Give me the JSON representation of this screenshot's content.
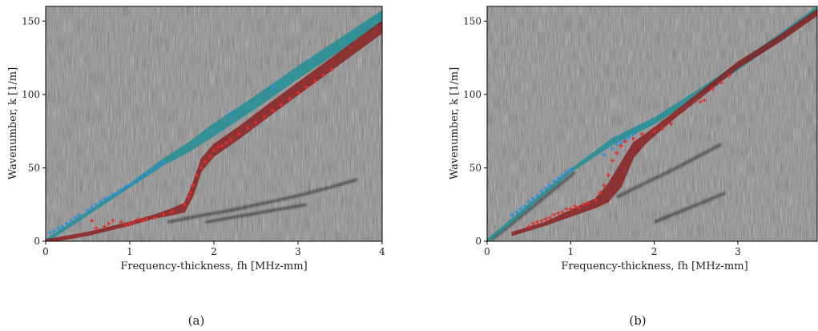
{
  "figure": {
    "captions": [
      "(a)",
      "(b)"
    ]
  },
  "colors": {
    "background_noise": "#8a8a8a",
    "symmetric_band": "#1a8f96",
    "antisymmetric_band": "#8b1a1a",
    "blue_marker": "#2a8fe0",
    "red_marker": "#e03030",
    "dark_ridge": "#1c1c1c"
  },
  "chart_data": [
    {
      "type": "scatter",
      "caption": "(a)",
      "xlabel": "Frequency-thickness, fh [MHz-mm]",
      "ylabel": "Wavenumber, k [1/m]",
      "xlim": [
        0,
        4
      ],
      "ylim": [
        0,
        160
      ],
      "xticks": [
        0,
        1,
        2,
        3,
        4
      ],
      "yticks": [
        0,
        50,
        100,
        150
      ],
      "grid": false,
      "legend": "none",
      "bands": [
        {
          "color": "teal",
          "x": [
            0,
            0.5,
            1.0,
            1.4,
            1.7,
            2.0,
            2.5,
            3.0,
            3.5,
            4.0
          ],
          "y": [
            0,
            19,
            38,
            54,
            64,
            76,
            95,
            115,
            134,
            153
          ],
          "halfwidth": [
            1,
            1,
            1,
            2,
            3,
            4,
            4,
            4,
            4,
            4
          ]
        },
        {
          "color": "maroon",
          "x": [
            0,
            0.5,
            1.0,
            1.3,
            1.5,
            1.65,
            1.75,
            1.85,
            2.0,
            2.3,
            2.6,
            3.0,
            3.5,
            4.0
          ],
          "y": [
            0,
            5,
            12,
            17,
            20,
            23,
            35,
            52,
            62,
            74,
            87,
            104,
            125,
            146
          ],
          "halfwidth": [
            1,
            1,
            1,
            1,
            2,
            3,
            4,
            4,
            4,
            4,
            4,
            4,
            4,
            4
          ]
        }
      ],
      "series": [
        {
          "color": "blue",
          "x": [
            0.05,
            0.1,
            0.15,
            0.2,
            0.25,
            0.3,
            0.35,
            0.4,
            0.5,
            0.55,
            0.6,
            0.65,
            0.7,
            0.75,
            0.8,
            0.85,
            0.9,
            0.95,
            1.0,
            1.05,
            1.1,
            1.15,
            1.2,
            1.25,
            1.3,
            1.35,
            1.4,
            2.2,
            2.7
          ],
          "y": [
            6,
            7,
            9,
            10,
            12,
            14,
            16,
            18,
            21,
            23,
            25,
            27,
            29,
            30,
            32,
            33,
            35,
            37,
            38,
            40,
            42,
            44,
            46,
            48,
            50,
            52,
            54,
            87,
            105
          ]
        },
        {
          "color": "red",
          "x": [
            0.55,
            0.6,
            0.7,
            0.75,
            0.8,
            0.9,
            0.95,
            1.0,
            1.05,
            1.1,
            1.15,
            1.2,
            1.3,
            1.4,
            1.5,
            1.65,
            1.7,
            1.72,
            1.75,
            1.8,
            1.85,
            1.9,
            1.95,
            2.0,
            2.05,
            2.1,
            2.15,
            2.2,
            2.3,
            2.4,
            2.5,
            2.6,
            2.7,
            2.8,
            2.9,
            3.0,
            3.1,
            3.2,
            3.3,
            3.4
          ],
          "y": [
            14,
            9,
            10,
            12,
            14,
            13,
            11,
            12,
            13,
            15,
            14,
            15,
            16,
            18,
            20,
            25,
            30,
            33,
            38,
            45,
            50,
            54,
            58,
            62,
            64,
            65,
            67,
            69,
            73,
            77,
            81,
            85,
            89,
            93,
            97,
            101,
            105,
            109,
            113,
            117
          ]
        }
      ],
      "ridges": [
        {
          "x": [
            1.45,
            1.8,
            2.2,
            2.6,
            3.0,
            3.4,
            3.7
          ],
          "y": [
            13,
            17,
            21,
            26,
            31,
            37,
            42
          ]
        },
        {
          "x": [
            1.9,
            2.3,
            2.7,
            3.1
          ],
          "y": [
            13,
            17,
            21,
            25
          ]
        }
      ]
    },
    {
      "type": "scatter",
      "caption": "(b)",
      "xlabel": "Frequency-thickness, fh [MHz-mm]",
      "ylabel": "Wavenumber, k [1/m]",
      "xlim": [
        0,
        3.95
      ],
      "ylim": [
        0,
        160
      ],
      "xticks": [
        0,
        1,
        2,
        3
      ],
      "yticks": [
        0,
        50,
        100,
        150
      ],
      "grid": false,
      "legend": "none",
      "bands": [
        {
          "color": "teal",
          "x": [
            0,
            0.5,
            1.0,
            1.5,
            2.0,
            2.5,
            3.0,
            3.5,
            3.95
          ],
          "y": [
            0,
            24,
            48,
            68,
            82,
            100,
            119,
            139,
            158
          ],
          "halfwidth": [
            1,
            1,
            1,
            2,
            2,
            2,
            2,
            2,
            2
          ]
        },
        {
          "color": "maroon",
          "x": [
            0.3,
            0.7,
            1.0,
            1.3,
            1.45,
            1.6,
            1.75,
            1.9,
            2.2,
            2.6,
            3.0,
            3.5,
            3.95
          ],
          "y": [
            5,
            12,
            19,
            26,
            33,
            45,
            62,
            70,
            84,
            102,
            120,
            138,
            156
          ],
          "halfwidth": [
            1,
            1,
            2,
            3,
            6,
            8,
            5,
            3,
            2,
            2,
            2,
            2,
            2
          ]
        }
      ],
      "series": [
        {
          "color": "blue",
          "x": [
            0.3,
            0.35,
            0.4,
            0.45,
            0.5,
            0.55,
            0.6,
            0.65,
            0.7,
            0.75,
            0.8,
            0.85,
            0.9,
            0.95,
            1.0,
            1.4,
            1.5,
            1.55,
            1.6,
            1.65,
            1.7,
            1.75
          ],
          "y": [
            18,
            20,
            22,
            24,
            27,
            29,
            31,
            34,
            36,
            38,
            41,
            43,
            45,
            47,
            49,
            59,
            63,
            66,
            67,
            69,
            71,
            73
          ]
        },
        {
          "color": "red",
          "x": [
            0.5,
            0.55,
            0.6,
            0.65,
            0.7,
            0.75,
            0.8,
            0.85,
            0.9,
            0.95,
            1.0,
            1.05,
            1.1,
            1.15,
            1.2,
            1.3,
            1.35,
            1.4,
            1.45,
            1.5,
            1.55,
            1.6,
            1.65,
            1.75,
            1.85,
            2.0,
            2.1,
            2.2,
            2.55,
            2.6,
            2.7,
            2.8,
            2.9
          ],
          "y": [
            10,
            12,
            13,
            14,
            15,
            16,
            18,
            19,
            20,
            22,
            22,
            24,
            23,
            25,
            26,
            28,
            33,
            38,
            45,
            55,
            60,
            65,
            68,
            70,
            73,
            75,
            77,
            80,
            95,
            96,
            104,
            108,
            113
          ]
        }
      ],
      "ridges": [
        {
          "x": [
            0.05,
            0.3,
            0.6,
            0.9,
            1.05
          ],
          "y": [
            1,
            12,
            26,
            40,
            47
          ]
        },
        {
          "x": [
            1.55,
            1.9,
            2.2,
            2.5,
            2.8
          ],
          "y": [
            30,
            40,
            48,
            57,
            66
          ]
        },
        {
          "x": [
            2.0,
            2.3,
            2.6,
            2.85
          ],
          "y": [
            13,
            20,
            27,
            33
          ]
        }
      ]
    }
  ]
}
